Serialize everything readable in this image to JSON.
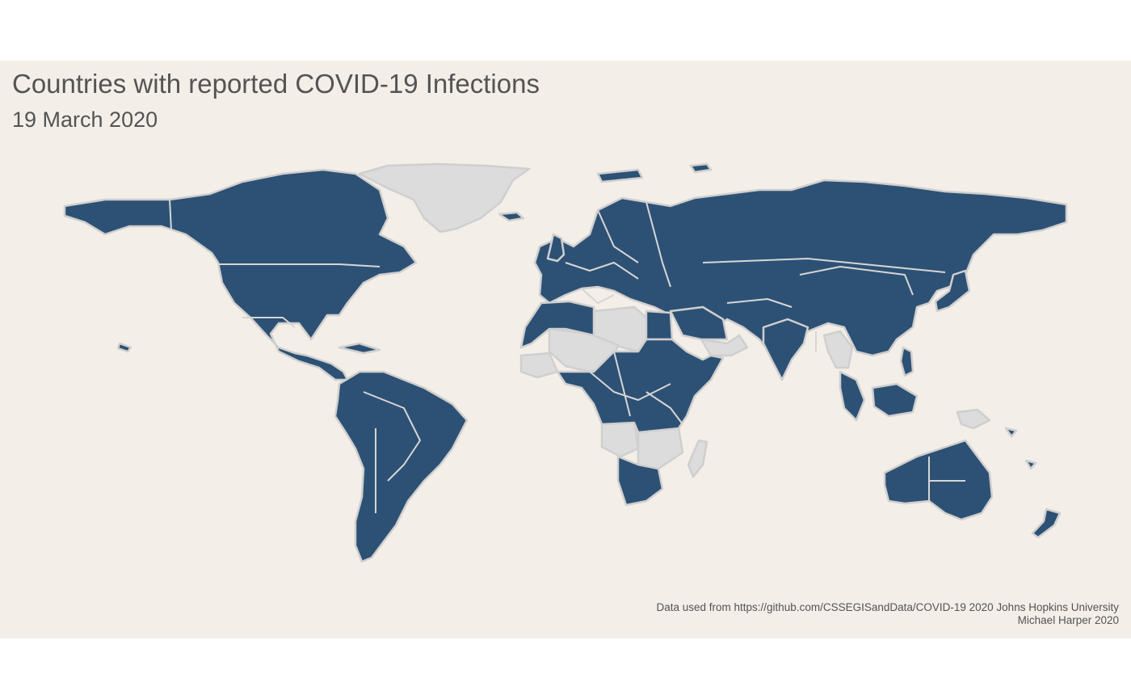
{
  "title": "Countries with reported COVID-19 Infections",
  "subtitle": "19 March 2020",
  "caption": {
    "line1": "Data used from  https://github.com/CSSEGISandData/COVID-19 2020 Johns Hopkins University",
    "line2": "Michael Harper 2020"
  },
  "colors": {
    "background": "#f3eee8",
    "infected": "#2d5174",
    "not_infected": "#dcdcdc",
    "border": "#cfcfcf",
    "text": "#545454"
  }
}
